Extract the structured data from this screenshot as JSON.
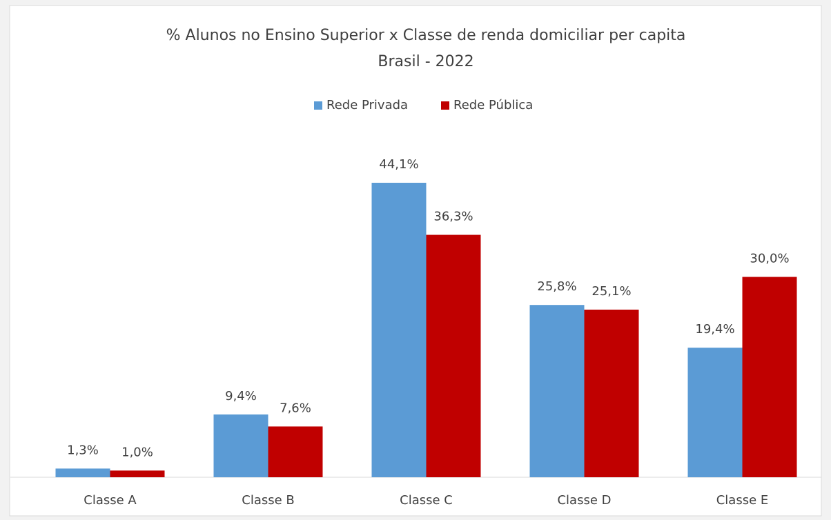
{
  "chart_data": {
    "type": "bar",
    "title": "% Alunos no Ensino Superior x Classe de renda domiciliar per capita",
    "subtitle": "Brasil - 2022",
    "categories": [
      "Classe A",
      "Classe B",
      "Classe C",
      "Classe D",
      "Classe E"
    ],
    "series": [
      {
        "name": "Rede Privada",
        "color": "#5b9bd5",
        "values": [
          1.3,
          9.4,
          44.1,
          25.8,
          19.4
        ],
        "value_labels": [
          "1,3%",
          "9,4%",
          "44,1%",
          "25,8%",
          "19,4%"
        ]
      },
      {
        "name": "Rede Pública",
        "color": "#c00000",
        "values": [
          1.0,
          7.6,
          36.3,
          25.1,
          30.0
        ],
        "value_labels": [
          "1,0%",
          "7,6%",
          "36,3%",
          "25,1%",
          "30,0%"
        ]
      }
    ],
    "legend": "top"
  }
}
